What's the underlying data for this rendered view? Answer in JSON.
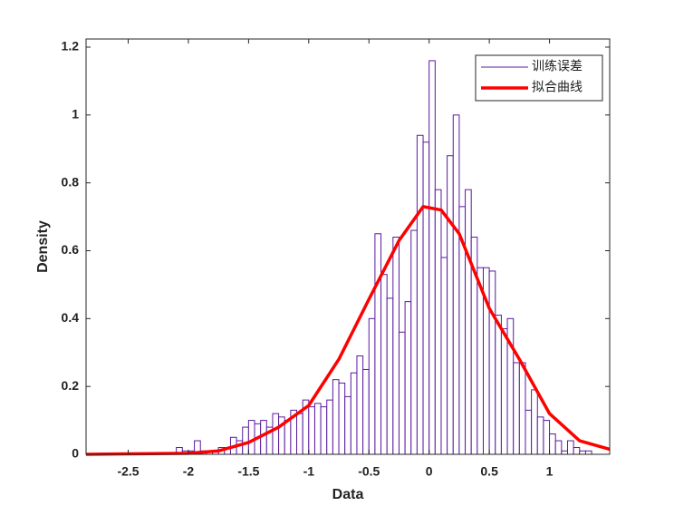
{
  "chart_data": {
    "type": "histogram",
    "name": "训练误差",
    "color": "#5b1a9e",
    "bins": [
      -2.1,
      -2.05,
      -2,
      -1.95,
      -1.9,
      -1.85,
      -1.8,
      -1.75,
      -1.7,
      -1.65,
      -1.6,
      -1.55,
      -1.5,
      -1.45,
      -1.4,
      -1.35,
      -1.3,
      -1.25,
      -1.2,
      -1.15,
      -1.1,
      -1.05,
      -1,
      -0.95,
      -0.9,
      -0.85,
      -0.8,
      -0.75,
      -0.7,
      -0.65,
      -0.6,
      -0.55,
      -0.5,
      -0.45,
      -0.4,
      -0.35,
      -0.3,
      -0.25,
      -0.2,
      -0.15,
      -0.1,
      -0.05,
      0,
      0.05,
      0.1,
      0.15,
      0.2,
      0.25,
      0.3,
      0.35,
      0.4,
      0.45,
      0.5,
      0.55,
      0.6,
      0.65,
      0.7,
      0.75,
      0.8,
      0.85,
      0.9,
      0.95,
      1,
      1.05,
      1.1,
      1.15,
      1.2,
      1.25,
      1.3,
      1.35
    ],
    "values": [
      0.02,
      0.01,
      0.01,
      0.04,
      0.01,
      0.01,
      0.01,
      0.02,
      0.02,
      0.05,
      0.04,
      0.08,
      0.1,
      0.09,
      0.1,
      0.08,
      0.12,
      0.11,
      0.1,
      0.13,
      0.12,
      0.16,
      0.14,
      0.15,
      0.14,
      0.16,
      0.22,
      0.21,
      0.17,
      0.24,
      0.29,
      0.25,
      0.4,
      0.65,
      0.53,
      0.46,
      0.64,
      0.36,
      0.45,
      0.66,
      0.94,
      0.92,
      1.16,
      0.78,
      0.58,
      0.88,
      1.0,
      0.73,
      0.78,
      0.64,
      0.55,
      0.55,
      0.54,
      0.41,
      0.37,
      0.4,
      0.27,
      0.27,
      0.13,
      0.19,
      0.11,
      0.1,
      0.06,
      0.04,
      0.01,
      0.04,
      0.02,
      0.01,
      0.01
    ],
    "curve": {
      "name": "拟合曲线",
      "color": "#ff0000",
      "x": [
        -2.85,
        -2,
        -1.75,
        -1.5,
        -1.25,
        -1,
        -0.75,
        -0.5,
        -0.25,
        -0.05,
        0.1,
        0.25,
        0.5,
        0.75,
        1,
        1.25,
        1.5
      ],
      "values": [
        0,
        0.003,
        0.01,
        0.035,
        0.08,
        0.144,
        0.28,
        0.457,
        0.63,
        0.73,
        0.72,
        0.65,
        0.43,
        0.28,
        0.12,
        0.04,
        0.015
      ]
    },
    "xlabel": "Data",
    "ylabel": "Density",
    "xlim": [
      -2.85,
      1.5
    ],
    "ylim": [
      0,
      1.224
    ],
    "xticks": [
      -2.5,
      -2,
      -1.5,
      -1,
      -0.5,
      0,
      0.5,
      1
    ],
    "yticks": [
      0,
      0.2,
      0.4,
      0.6,
      0.8,
      1,
      1.2
    ],
    "legend": "upper right"
  }
}
